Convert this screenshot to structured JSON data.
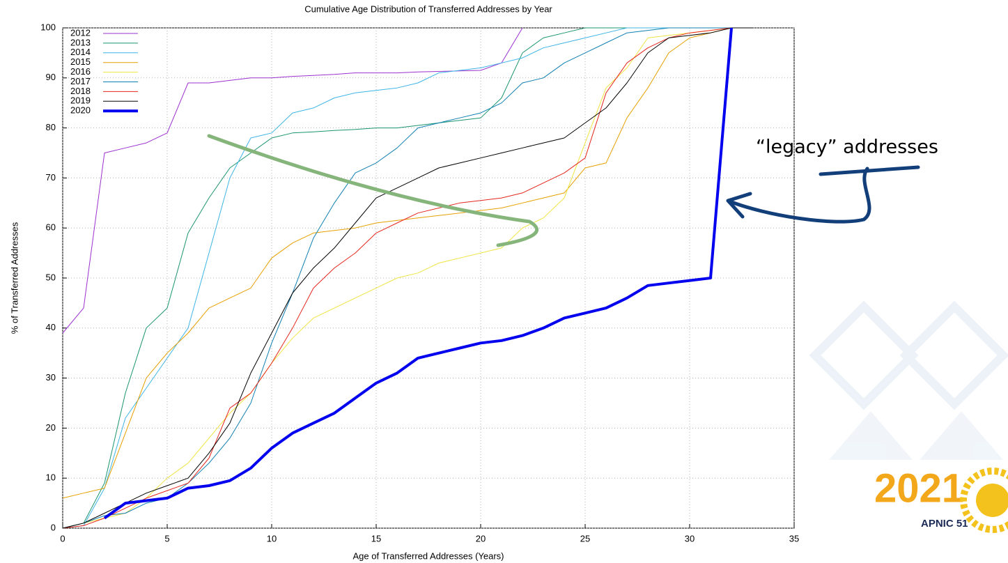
{
  "chart_data": {
    "type": "line",
    "title": "Cumulative Age Distribution of Transferred Addresses by Year",
    "x_label": "Age of Transferred Addresses (Years)",
    "y_label": "% of Transferred Addresses",
    "annotation": "“legacy” addresses",
    "x": [
      0,
      1,
      2,
      3,
      4,
      5,
      6,
      7,
      8,
      9,
      10,
      11,
      12,
      13,
      14,
      15,
      16,
      17,
      18,
      19,
      20,
      21,
      22,
      23,
      24,
      25,
      26,
      27,
      28,
      29,
      30,
      31,
      32,
      33,
      34
    ],
    "xlim": [
      0,
      35
    ],
    "xticks": [
      0,
      5,
      10,
      15,
      20,
      25,
      30,
      35
    ],
    "ylim": [
      0,
      100
    ],
    "yticks": [
      0,
      10,
      20,
      30,
      40,
      50,
      60,
      70,
      80,
      90,
      100
    ],
    "grid": true,
    "legend": "top-left",
    "series": [
      {
        "name": "2012",
        "color": "#9b30d0",
        "width": 1,
        "values": [
          39,
          44,
          75,
          76,
          77,
          79,
          89,
          89,
          89.5,
          90,
          90,
          90.3,
          90.5,
          90.7,
          91,
          91,
          91,
          91.2,
          91.3,
          91.4,
          91.5,
          93,
          100,
          null,
          null,
          null,
          null,
          null,
          null,
          null,
          null,
          null,
          null,
          null,
          null
        ]
      },
      {
        "name": "2013",
        "color": "#1a9470",
        "width": 1,
        "values": [
          0,
          1,
          9,
          27,
          40,
          44,
          59,
          66,
          72,
          75,
          78,
          79,
          79.2,
          79.5,
          79.7,
          80,
          80,
          80.5,
          81,
          81.5,
          82,
          86,
          95,
          98,
          99,
          100,
          100,
          100,
          100,
          100,
          100,
          100,
          100,
          100,
          null
        ]
      },
      {
        "name": "2014",
        "color": "#3cb4e6",
        "width": 1,
        "values": [
          0,
          0.5,
          8,
          22,
          28,
          34,
          40,
          55,
          70,
          78,
          79,
          83,
          84,
          86,
          87,
          87.5,
          88,
          89,
          91,
          91.5,
          92,
          93,
          94,
          96,
          97,
          98,
          99,
          100,
          100,
          100,
          100,
          100,
          100,
          100,
          null
        ]
      },
      {
        "name": "2015",
        "color": "#e69f00",
        "width": 1,
        "values": [
          6,
          7,
          8,
          19,
          30,
          35,
          39,
          44,
          46,
          48,
          54,
          57,
          59,
          59.5,
          60,
          61,
          61.5,
          62,
          62.5,
          63,
          63.5,
          64,
          65,
          66,
          67,
          72,
          73,
          82,
          88,
          95,
          98,
          99,
          100,
          100,
          null
        ]
      },
      {
        "name": "2016",
        "color": "#f0e442",
        "width": 1,
        "values": [
          0,
          1,
          2,
          3,
          6,
          10,
          13,
          18,
          23,
          27,
          33,
          38,
          42,
          44,
          46,
          48,
          50,
          51,
          53,
          54,
          55,
          56,
          60,
          62,
          66,
          77,
          88,
          92,
          98,
          98.5,
          99,
          99.5,
          100,
          100,
          null
        ]
      },
      {
        "name": "2017",
        "color": "#0f7fb0",
        "width": 1,
        "values": [
          0,
          1,
          2.5,
          3,
          5,
          6,
          9,
          13,
          18,
          25,
          37,
          47,
          58,
          65,
          71,
          73,
          76,
          80,
          81,
          82,
          83,
          85,
          89,
          90,
          93,
          95,
          97,
          99,
          99.5,
          100,
          100,
          100,
          100,
          100,
          null
        ]
      },
      {
        "name": "2018",
        "color": "#e5261d",
        "width": 1,
        "values": [
          0,
          0.5,
          2,
          4,
          6,
          7.5,
          9,
          14,
          24,
          27,
          33,
          40,
          48,
          52,
          55,
          59,
          61,
          63,
          64,
          65,
          65.5,
          66,
          67,
          69,
          71,
          74,
          87,
          93,
          96,
          98,
          99,
          99.5,
          100,
          100,
          null
        ]
      },
      {
        "name": "2019",
        "color": "#000000",
        "width": 1,
        "values": [
          0,
          1,
          3,
          5,
          7,
          8.5,
          10,
          15,
          21,
          31,
          39,
          47,
          52,
          56,
          61,
          66,
          68,
          70,
          72,
          73,
          74,
          75,
          76,
          77,
          78,
          81,
          84,
          89,
          95,
          98,
          98.5,
          99,
          100,
          100,
          null
        ]
      },
      {
        "name": "2020",
        "color": "#0000ee",
        "width": 4,
        "values": [
          null,
          null,
          2,
          5,
          5.5,
          6,
          8,
          8.5,
          9.5,
          12,
          16,
          19,
          21,
          23,
          26,
          29,
          31,
          34,
          35,
          36,
          37,
          37.5,
          38.5,
          40,
          42,
          43,
          44,
          46,
          48.5,
          49,
          49.5,
          50,
          100,
          null,
          null
        ]
      }
    ]
  },
  "logo": {
    "year": "2021",
    "event": "APNIC 51"
  }
}
